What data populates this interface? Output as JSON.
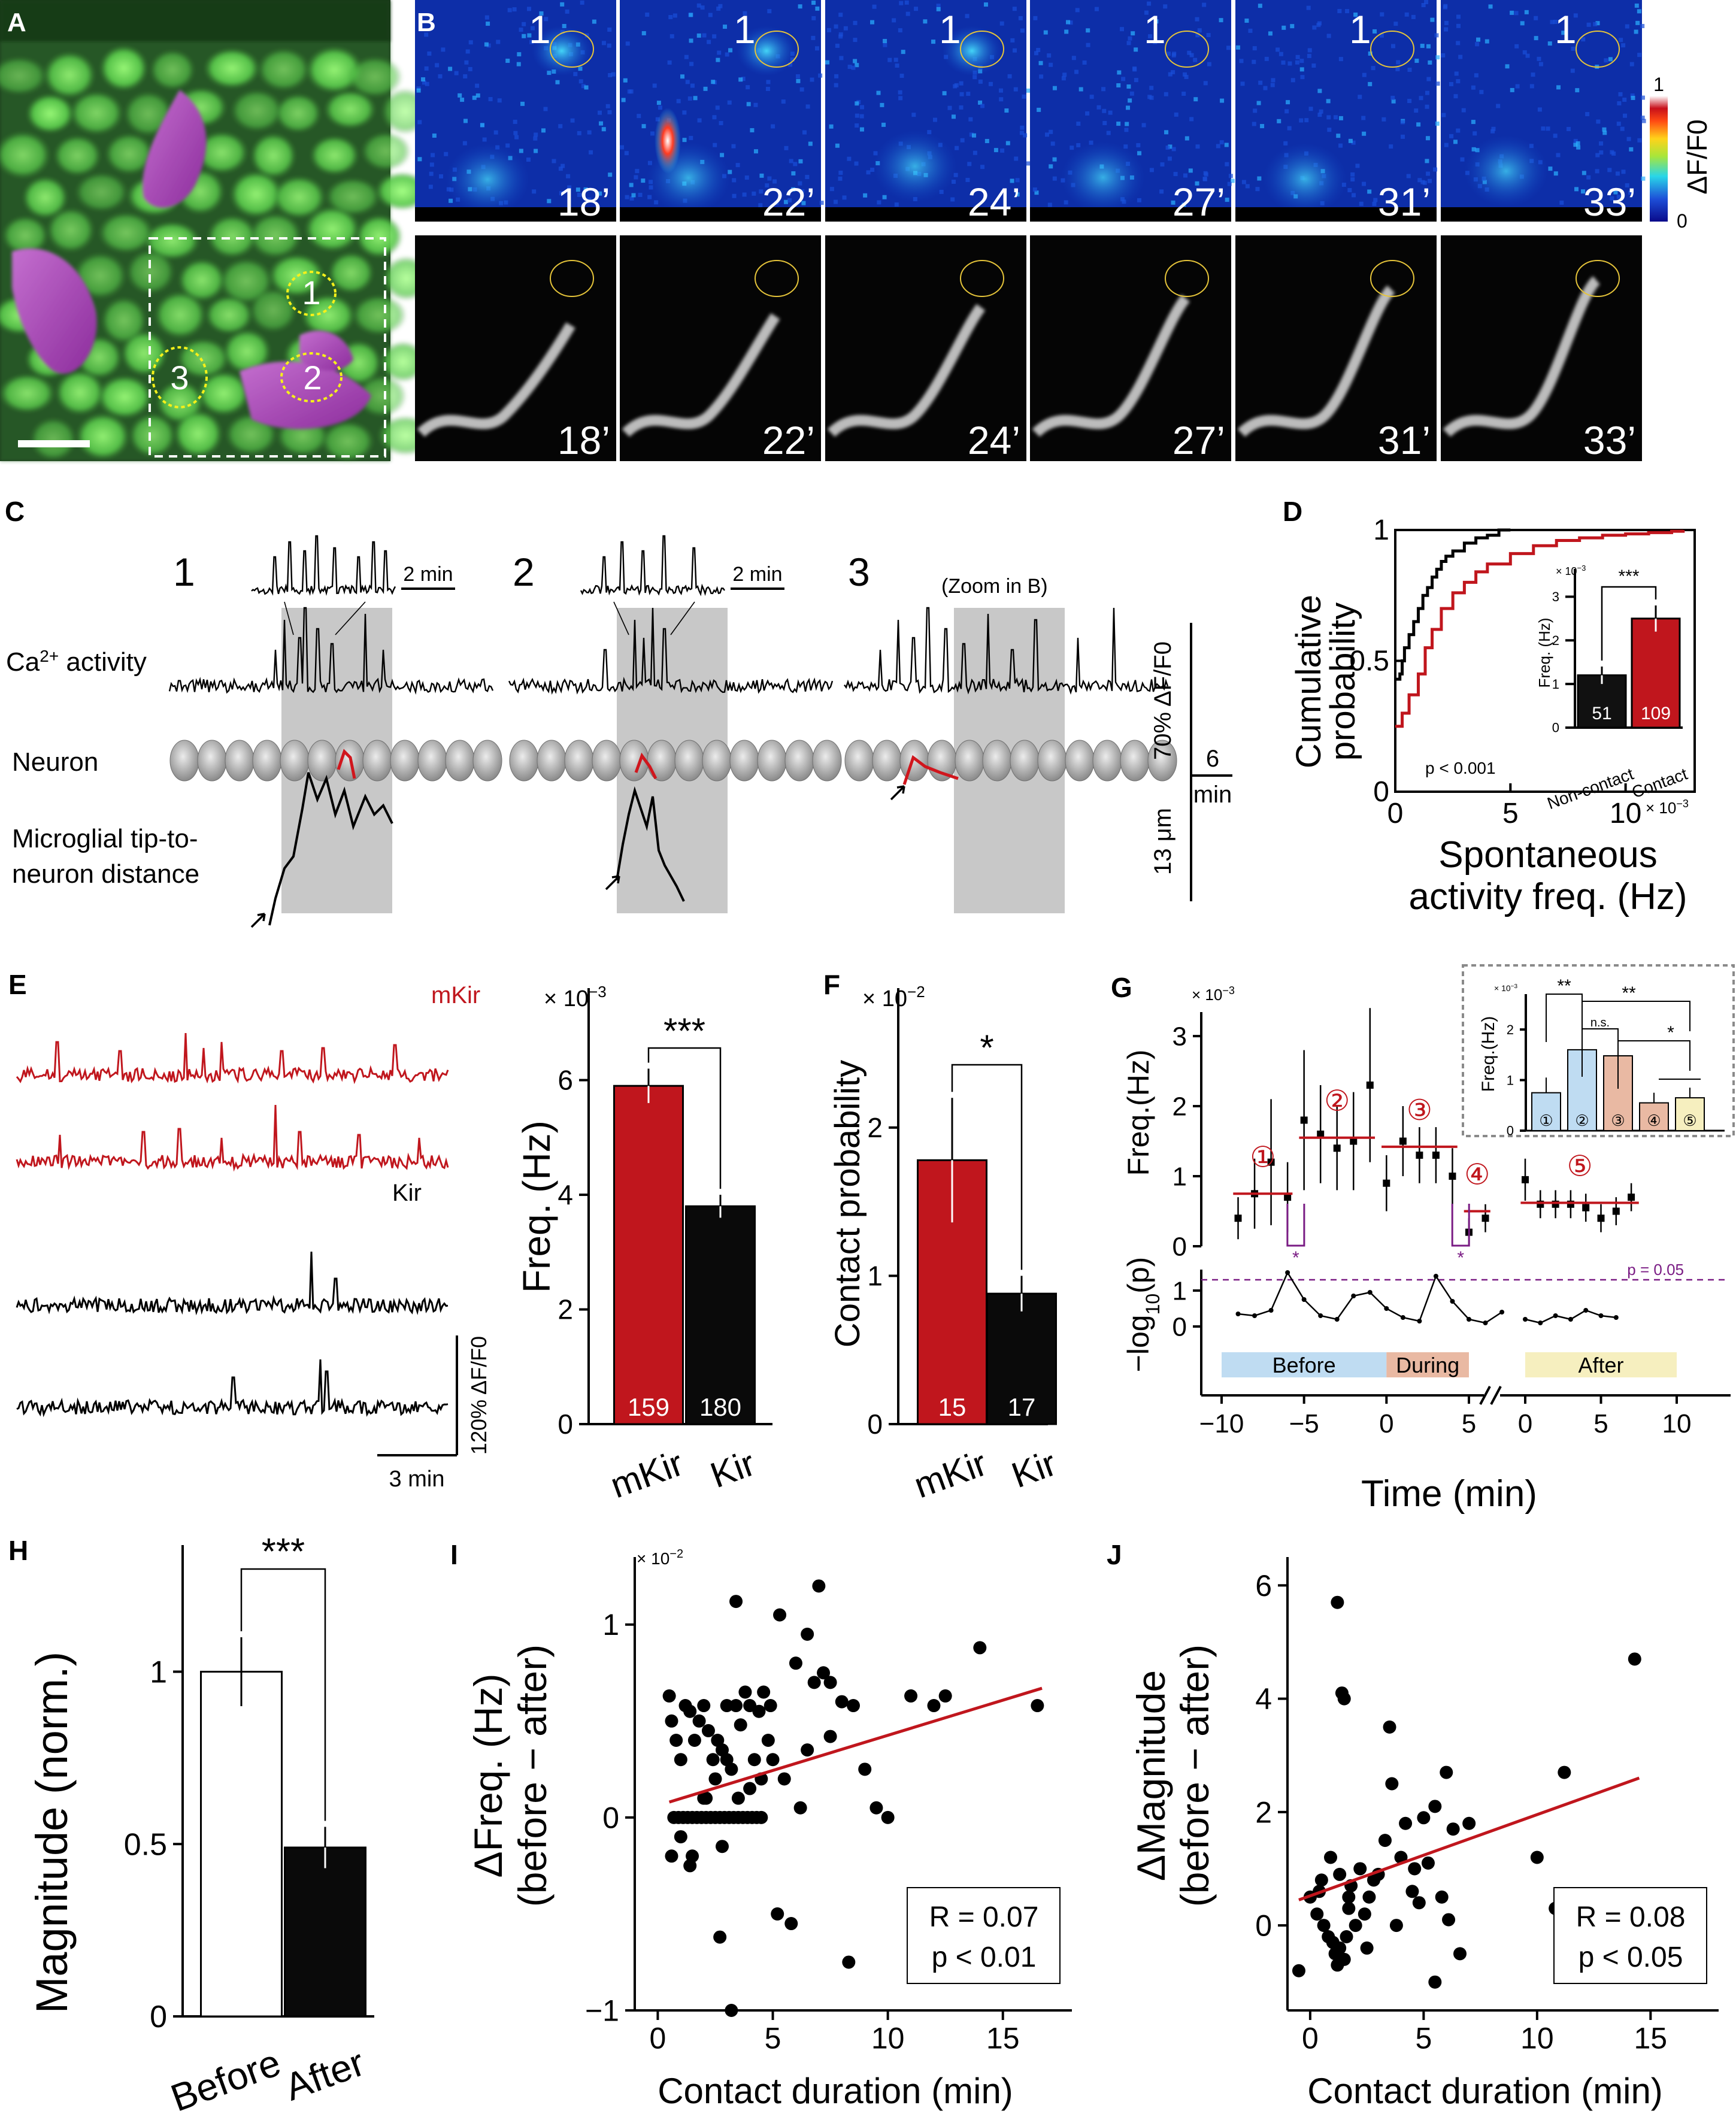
{
  "panel_labels": {
    "a": "A",
    "b": "B",
    "c": "C",
    "d": "D",
    "e": "E",
    "f": "F",
    "g": "G",
    "h": "H",
    "i": "I",
    "j": "J"
  },
  "panel_a": {
    "roi_labels": [
      "1",
      "2",
      "3"
    ]
  },
  "panel_b": {
    "times": [
      "18’",
      "22’",
      "24’",
      "27’",
      "31’",
      "33’"
    ],
    "roi_label": "1",
    "colorbar": {
      "label": "ΔF/F0",
      "max": "1",
      "min": "0"
    }
  },
  "panel_c": {
    "cell_numbers": [
      "1",
      "2",
      "3"
    ],
    "zoom_scale": "2 min",
    "zoom_note": "(Zoom in B)",
    "row_labels": {
      "ca": "Ca",
      "ca_sup": "2+",
      "ca_suffix": " activity",
      "neuron": "Neuron",
      "distance_line1": "Microglial tip-to-",
      "distance_line2": "neuron distance"
    },
    "scalebars": {
      "df": "70% ΔF/F0",
      "time": "6",
      "time_unit": "min",
      "dist": "13 μm"
    }
  },
  "chart_data": [
    {
      "panel": "D",
      "type": "line",
      "ylabel_line1": "Cumulative",
      "ylabel_line2": "probability",
      "xlabel_line1": "Spontaneous",
      "xlabel_line2": "activity freq. (Hz)",
      "x_multiplier": "× 10",
      "x_exp": "−3",
      "xlim": [
        0,
        0.013
      ],
      "ylim": [
        0,
        1
      ],
      "x_ticks": [
        {
          "v": 0,
          "label": "0"
        },
        {
          "v": 0.005,
          "label": "5"
        },
        {
          "v": 0.01,
          "label": "10"
        }
      ],
      "y_ticks": [
        {
          "v": 0,
          "label": "0"
        },
        {
          "v": 0.5,
          "label": "0.5"
        },
        {
          "v": 1,
          "label": "1"
        }
      ],
      "series": [
        {
          "color": "#000000",
          "x": [
            0,
            0.0002,
            0.0003,
            0.0004,
            0.0006,
            0.0008,
            0.001,
            0.0012,
            0.0014,
            0.0016,
            0.0018,
            0.002,
            0.0022,
            0.0025,
            0.003,
            0.0035,
            0.004,
            0.0045,
            0.005
          ],
          "y": [
            0.43,
            0.45,
            0.5,
            0.55,
            0.6,
            0.65,
            0.7,
            0.75,
            0.78,
            0.82,
            0.85,
            0.88,
            0.9,
            0.92,
            0.95,
            0.97,
            0.98,
            1,
            1
          ]
        },
        {
          "color": "#c0161d",
          "x": [
            0,
            0.0003,
            0.0006,
            0.001,
            0.0013,
            0.0016,
            0.002,
            0.0025,
            0.003,
            0.0035,
            0.004,
            0.005,
            0.006,
            0.007,
            0.008,
            0.009,
            0.01,
            0.011,
            0.012,
            0.0125
          ],
          "y": [
            0.25,
            0.3,
            0.37,
            0.45,
            0.55,
            0.62,
            0.7,
            0.76,
            0.8,
            0.84,
            0.87,
            0.91,
            0.94,
            0.96,
            0.97,
            0.98,
            0.985,
            0.99,
            0.995,
            1
          ]
        }
      ],
      "p_text": "p < 0.001",
      "inset": {
        "type": "bar",
        "ylabel": "Freq. (Hz)",
        "multiplier": "× 10",
        "exp": "−3",
        "categories": [
          "Non-contact",
          "Contact"
        ],
        "values": [
          0.0012,
          0.0025
        ],
        "errors": [
          0.0002,
          0.0003
        ],
        "n": [
          "51",
          "109"
        ],
        "colors": [
          "#111111",
          "#c0161d"
        ],
        "ylim": [
          0,
          0.0035
        ],
        "y_ticks": [
          {
            "v": 0,
            "label": "0"
          },
          {
            "v": 0.001,
            "label": "1"
          },
          {
            "v": 0.002,
            "label": "2"
          },
          {
            "v": 0.003,
            "label": "3"
          }
        ],
        "sig": "***"
      }
    },
    {
      "panel": "E",
      "type": "bar",
      "traces_labels": {
        "mkir": "mKir",
        "kir": "Kir"
      },
      "scalebars": {
        "time": "3 min",
        "df": "120% ΔF/F0"
      },
      "ylabel": "Freq. (Hz)",
      "multiplier": "× 10",
      "exp": "−3",
      "categories": [
        "mKir",
        "Kir"
      ],
      "values": [
        0.0059,
        0.0038
      ],
      "errors": [
        0.0003,
        0.0002
      ],
      "n": [
        "159",
        "180"
      ],
      "colors": [
        "#c0161d",
        "#0a0a0a"
      ],
      "ylim": [
        0,
        0.0075
      ],
      "y_ticks": [
        {
          "v": 0,
          "label": "0"
        },
        {
          "v": 0.002,
          "label": "2"
        },
        {
          "v": 0.004,
          "label": "4"
        },
        {
          "v": 0.006,
          "label": "6"
        }
      ],
      "sig": "***"
    },
    {
      "panel": "F",
      "type": "bar",
      "ylabel": "Contact probability",
      "multiplier": "× 10",
      "exp": "−2",
      "categories": [
        "mKir",
        "Kir"
      ],
      "values": [
        0.0178,
        0.0088
      ],
      "errors": [
        0.0042,
        0.0012
      ],
      "n": [
        "15",
        "17"
      ],
      "colors": [
        "#c0161d",
        "#0a0a0a"
      ],
      "ylim": [
        0,
        0.029
      ],
      "y_ticks": [
        {
          "v": 0,
          "label": "0"
        },
        {
          "v": 0.01,
          "label": "1"
        },
        {
          "v": 0.02,
          "label": "2"
        }
      ],
      "sig": "*"
    },
    {
      "panel": "G",
      "type": "line",
      "top_ylabel": "Freq.(Hz)",
      "multiplier": "× 10",
      "exp": "−3",
      "bottom_ylabel": "−log",
      "bottom_ylabel_sub": "10",
      "bottom_ylabel_suffix": "(p)",
      "xlabel": "Time (min)",
      "x_ticks_left": [
        {
          "v": -10,
          "label": "−10"
        },
        {
          "v": -5,
          "label": "−5"
        },
        {
          "v": 0,
          "label": "0"
        },
        {
          "v": 5,
          "label": "5"
        }
      ],
      "x_ticks_right": [
        {
          "v": 0,
          "label": "0"
        },
        {
          "v": 5,
          "label": "5"
        },
        {
          "v": 10,
          "label": "10"
        }
      ],
      "freq_y_ticks": [
        {
          "v": 0,
          "label": "0"
        },
        {
          "v": 0.001,
          "label": "1"
        },
        {
          "v": 0.002,
          "label": "2"
        },
        {
          "v": 0.003,
          "label": "3"
        }
      ],
      "logp_y_ticks": [
        {
          "v": 0,
          "label": "0"
        },
        {
          "v": 1,
          "label": "1"
        }
      ],
      "freq_before": {
        "x": [
          -9,
          -8,
          -7,
          -6
        ],
        "y": [
          0.0004,
          0.00075,
          0.0012,
          0.0007
        ],
        "err": [
          0.0003,
          0.0005,
          0.0009,
          0.0005
        ]
      },
      "freq_during": {
        "x": [
          -5,
          -4,
          -3,
          -2,
          -1
        ],
        "y": [
          0.0018,
          0.0016,
          0.0014,
          0.0015,
          0.0023
        ],
        "err": [
          0.001,
          0.0007,
          0.0006,
          0.0007,
          0.0011
        ]
      },
      "freq_seg3": {
        "x": [
          0,
          1,
          2,
          3,
          4
        ],
        "y": [
          0.0009,
          0.0015,
          0.0013,
          0.0013,
          0.001
        ],
        "err": [
          0.0004,
          0.0005,
          0.0004,
          0.0004,
          0.0004
        ]
      },
      "freq_seg4": {
        "x": [
          5,
          6
        ],
        "y": [
          0.0002,
          0.0004
        ],
        "err": [
          0.0002,
          0.0002
        ]
      },
      "freq_after": {
        "x": [
          0,
          1,
          2,
          3,
          4,
          5,
          6,
          7
        ],
        "y": [
          0.00095,
          0.0006,
          0.0006,
          0.0006,
          0.00055,
          0.0004,
          0.0005,
          0.0007
        ],
        "err": [
          0.0003,
          0.0002,
          0.0002,
          0.0002,
          0.0002,
          0.0002,
          0.0002,
          0.0002
        ]
      },
      "means": [
        {
          "label": "①",
          "x0": -9.3,
          "x1": -5.7,
          "y": 0.00075
        },
        {
          "label": "②",
          "x0": -5.3,
          "x1": -0.7,
          "y": 0.00155
        },
        {
          "label": "③",
          "x0": -0.3,
          "x1": 4.3,
          "y": 0.00142
        },
        {
          "label": "④",
          "x0": 4.7,
          "x1": 6.3,
          "y": 0.0005
        },
        {
          "label": "⑤",
          "x0": -0.3,
          "x1": 7.5,
          "y": 0.00062,
          "after": true
        }
      ],
      "logp_left": {
        "x": [
          -9,
          -8,
          -7,
          -6,
          -5,
          -4,
          -3,
          -2,
          -1,
          0,
          1,
          2,
          3,
          4,
          5,
          6,
          7
        ],
        "y": [
          0.35,
          0.3,
          0.45,
          1.5,
          0.75,
          0.3,
          0.2,
          0.85,
          0.95,
          0.5,
          0.25,
          0.15,
          1.4,
          0.7,
          0.2,
          0.1,
          0.4
        ]
      },
      "logp_right": {
        "x": [
          0,
          1,
          2,
          3,
          4,
          5,
          6
        ],
        "y": [
          0.2,
          0.1,
          0.3,
          0.2,
          0.45,
          0.3,
          0.25
        ]
      },
      "threshold": {
        "value": 1.3,
        "label": "p = 0.05"
      },
      "stars": [
        {
          "x": -5.5,
          "label": "*"
        },
        {
          "x": 4.5,
          "label": "*"
        }
      ],
      "phases": [
        {
          "label": "Before",
          "color": "#bfdcf2"
        },
        {
          "label": "During",
          "color": "#e9b9a3"
        },
        {
          "label": "After",
          "color": "#f6efbf"
        }
      ],
      "inset": {
        "ylabel": "Freq.(Hz)",
        "multiplier": "× 10",
        "exp": "−3",
        "categories": [
          "①",
          "②",
          "③",
          "④",
          "⑤"
        ],
        "values": [
          0.00075,
          0.0016,
          0.00148,
          0.00055,
          0.00065
        ],
        "errors": [
          0.0003,
          0.00045,
          0.0004,
          0.0002,
          0.0002
        ],
        "colors": [
          "#bfdcf2",
          "#bfdcf2",
          "#e9b9a3",
          "#e9b9a3",
          "#f6efbf"
        ],
        "ylim": [
          0,
          0.0027
        ],
        "y_ticks": [
          {
            "v": 0,
            "label": "0"
          },
          {
            "v": 0.001,
            "label": "1"
          },
          {
            "v": 0.002,
            "label": "2"
          }
        ],
        "sig": [
          {
            "label": "**"
          },
          {
            "label": "**"
          },
          {
            "label": "n.s."
          },
          {
            "label": "*"
          }
        ]
      }
    },
    {
      "panel": "H",
      "type": "bar",
      "ylabel": "Magnitude (norm.)",
      "categories": [
        "Before",
        "After"
      ],
      "values": [
        1.0,
        0.49
      ],
      "errors": [
        0.1,
        0.06
      ],
      "colors": [
        "#ffffff",
        "#0a0a0a"
      ],
      "ylim": [
        0,
        1.35
      ],
      "y_ticks": [
        {
          "v": 0,
          "label": "0"
        },
        {
          "v": 0.5,
          "label": "0.5"
        },
        {
          "v": 1,
          "label": "1"
        }
      ],
      "sig": "***"
    },
    {
      "panel": "I",
      "type": "scatter",
      "xlabel": "Contact duration (min)",
      "ylabel_line1": "ΔFreq. (Hz)",
      "ylabel_line2": "(before − after)",
      "multiplier": "× 10",
      "exp": "−2",
      "xlim": [
        -1,
        18
      ],
      "ylim": [
        -0.01,
        0.0135
      ],
      "x_ticks": [
        {
          "v": 0,
          "label": "0"
        },
        {
          "v": 5,
          "label": "5"
        },
        {
          "v": 10,
          "label": "10"
        },
        {
          "v": 15,
          "label": "15"
        }
      ],
      "y_ticks": [
        {
          "v": -0.01,
          "label": "−1"
        },
        {
          "v": 0,
          "label": "0"
        },
        {
          "v": 0.01,
          "label": "1"
        }
      ],
      "x": [
        0.5,
        0.6,
        0.6,
        0.8,
        1,
        1.2,
        1.4,
        1.6,
        1.8,
        2,
        2.2,
        2.4,
        2.6,
        2.8,
        3,
        3.2,
        3.4,
        3.6,
        3.8,
        4,
        4.2,
        4.4,
        4.6,
        4.8,
        0.7,
        0.9,
        1.1,
        1.3,
        1.5,
        1.7,
        1.9,
        2.1,
        2.3,
        2.5,
        2.7,
        2.9,
        3.1,
        3.3,
        3.5,
        3.7,
        3.9,
        4.1,
        4.3,
        4.5,
        1,
        1.5,
        2,
        2.5,
        3,
        3.5,
        4,
        4.5,
        5,
        5.5,
        6,
        6.5,
        7,
        7.5,
        8,
        8.5,
        9,
        9.5,
        10,
        11,
        12,
        12.5,
        14,
        16.5,
        5.2,
        6.2,
        7.2,
        2.7,
        3.2,
        5.8,
        6.8,
        3.4,
        4.9,
        5.3,
        1.4,
        2.1,
        6.5,
        7.5,
        2.8,
        8.3
      ],
      "y": [
        0.0063,
        0.005,
        -0.002,
        0.004,
        0.003,
        0.0058,
        0.0055,
        0.004,
        0.005,
        0.0058,
        0.0045,
        0.003,
        0.004,
        0.0035,
        0.0058,
        0.0025,
        0.0058,
        0.0048,
        0.0065,
        0.0058,
        0.003,
        0.0055,
        0.0065,
        0.004,
        0,
        0,
        0,
        0,
        0,
        0,
        0,
        0,
        0,
        0,
        0,
        0,
        0,
        0,
        0,
        0,
        0,
        0,
        0,
        0,
        -0.001,
        -0.002,
        0.001,
        0.002,
        0.003,
        0.001,
        0.0015,
        0.002,
        0.003,
        0.002,
        0.008,
        0.0095,
        0.012,
        0.007,
        0.006,
        0.0058,
        0.0025,
        0.0005,
        0,
        0.0063,
        0.0058,
        0.0063,
        0.0088,
        0.0058,
        -0.005,
        0.0005,
        0.0075,
        -0.0062,
        -0.01,
        -0.0055,
        0.007,
        0.0112,
        0.0058,
        0.0105,
        -0.0025,
        0.001,
        0.0035,
        0.0042,
        -0.0015,
        -0.0075
      ],
      "fit": {
        "x0": 0.5,
        "y0": 0.0008,
        "x1": 16.7,
        "y1": 0.0067,
        "color": "#c0161d"
      },
      "stats": {
        "line1": "R = 0.07",
        "line2": "p < 0.01"
      }
    },
    {
      "panel": "J",
      "type": "scatter",
      "xlabel": "Contact duration (min)",
      "ylabel_line1": "ΔMagnitude",
      "ylabel_line2": "(before − after)",
      "xlim": [
        -1,
        18
      ],
      "ylim": [
        -1.5,
        6.5
      ],
      "x_ticks": [
        {
          "v": 0,
          "label": "0"
        },
        {
          "v": 5,
          "label": "5"
        },
        {
          "v": 10,
          "label": "10"
        },
        {
          "v": 15,
          "label": "15"
        }
      ],
      "y_ticks": [
        {
          "v": 0,
          "label": "0"
        },
        {
          "v": 2,
          "label": "2"
        },
        {
          "v": 4,
          "label": "4"
        },
        {
          "v": 6,
          "label": "6"
        }
      ],
      "x": [
        -0.5,
        0,
        0.3,
        0.5,
        0.6,
        0.8,
        1,
        1.1,
        1.2,
        1.3,
        1.5,
        1.6,
        1.7,
        1.8,
        2,
        2.2,
        2.4,
        2.6,
        2.8,
        3,
        3.3,
        3.5,
        3.8,
        4,
        4.2,
        4.5,
        4.8,
        5,
        5.2,
        5.5,
        5.8,
        6,
        6.3,
        6.6,
        7,
        1.2,
        1.4,
        1.5,
        3.6,
        5.5,
        10,
        10.8,
        11.2,
        14.3,
        2.5,
        0.9,
        1.3,
        1.7,
        4.6,
        6.1,
        0.4
      ],
      "y": [
        -0.8,
        0.5,
        0.2,
        0.8,
        0,
        -0.2,
        -0.3,
        -0.5,
        -0.7,
        -0.4,
        -0.6,
        -0.2,
        0.5,
        0.7,
        0,
        1,
        0.2,
        0.5,
        0.8,
        0.9,
        1.5,
        3.5,
        0,
        1.2,
        1.8,
        0.6,
        0.4,
        1.9,
        1.1,
        2.1,
        0.5,
        2.7,
        1.7,
        -0.5,
        1.8,
        5.7,
        4.1,
        4,
        2.5,
        -1,
        1.2,
        0.3,
        2.7,
        4.7,
        -0.4,
        1.2,
        0.9,
        0.3,
        1,
        0.1,
        0.6
      ],
      "fit": {
        "x0": -0.5,
        "y0": 0.45,
        "x1": 14.5,
        "y1": 2.6,
        "color": "#c0161d"
      },
      "stats": {
        "line1": "R = 0.08",
        "line2": "p < 0.05"
      }
    }
  ]
}
